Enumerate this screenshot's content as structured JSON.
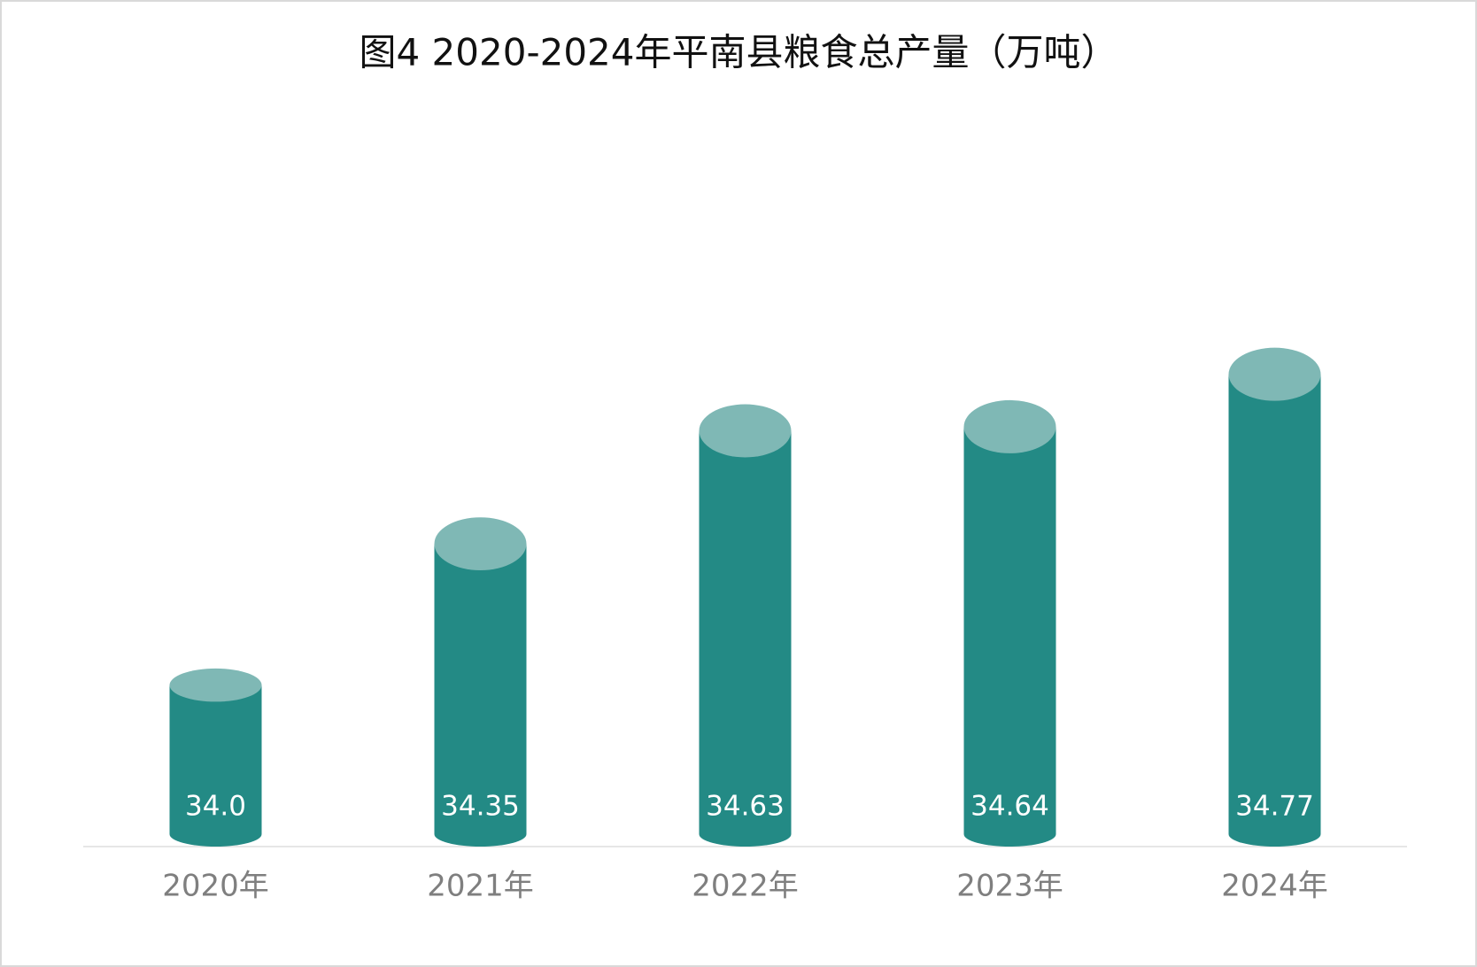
{
  "chart_data": {
    "type": "bar",
    "title": "图4  2020-2024年平南县粮食总产量（万吨）",
    "categories": [
      "2020年",
      "2021年",
      "2022年",
      "2023年",
      "2024年"
    ],
    "values": [
      34.0,
      34.35,
      34.63,
      34.64,
      34.77
    ],
    "value_labels": [
      "34.0",
      "34.35",
      "34.63",
      "34.64",
      "34.77"
    ],
    "color": "#238a85",
    "ylim": [
      33.6,
      34.8
    ]
  }
}
